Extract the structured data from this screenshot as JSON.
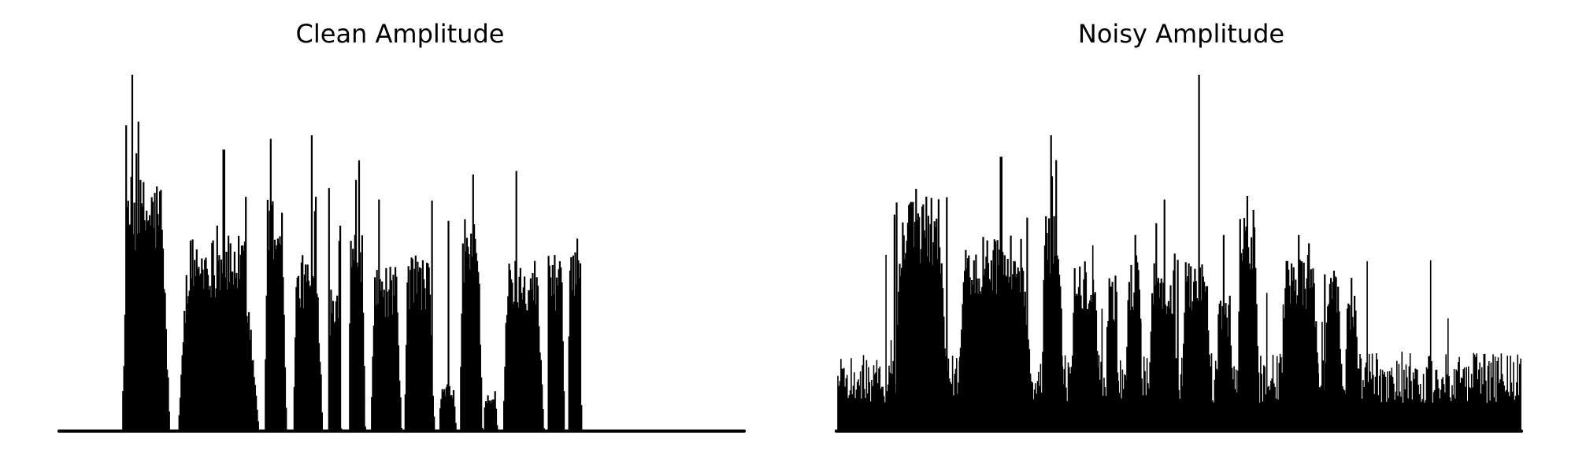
{
  "chart_data": [
    {
      "type": "area",
      "title": "Clean Amplitude",
      "xlabel": "",
      "ylabel": "",
      "axes_visible": false,
      "grid": false,
      "ylim": [
        0,
        1.0
      ],
      "color": "#000000",
      "bursts": [
        {
          "start": 0.092,
          "end": 0.162,
          "peak": 1.0,
          "level": 0.65
        },
        {
          "start": 0.174,
          "end": 0.292,
          "peak": 0.79,
          "level": 0.5
        },
        {
          "start": 0.3,
          "end": 0.332,
          "peak": 0.82,
          "level": 0.6
        },
        {
          "start": 0.342,
          "end": 0.385,
          "peak": 0.83,
          "level": 0.45
        },
        {
          "start": 0.394,
          "end": 0.412,
          "peak": 0.77,
          "level": 0.4
        },
        {
          "start": 0.423,
          "end": 0.447,
          "peak": 0.76,
          "level": 0.55
        },
        {
          "start": 0.455,
          "end": 0.5,
          "peak": 0.65,
          "level": 0.42
        },
        {
          "start": 0.504,
          "end": 0.548,
          "peak": 0.74,
          "level": 0.45
        },
        {
          "start": 0.555,
          "end": 0.58,
          "peak": 0.59,
          "level": 0.12
        },
        {
          "start": 0.585,
          "end": 0.618,
          "peak": 0.72,
          "level": 0.55
        },
        {
          "start": 0.62,
          "end": 0.64,
          "peak": 0.14,
          "level": 0.1
        },
        {
          "start": 0.648,
          "end": 0.708,
          "peak": 0.73,
          "level": 0.45
        },
        {
          "start": 0.713,
          "end": 0.738,
          "peak": 0.54,
          "level": 0.45
        },
        {
          "start": 0.743,
          "end": 0.763,
          "peak": 0.54,
          "level": 0.45
        }
      ]
    },
    {
      "type": "area",
      "title": "Noisy Amplitude",
      "xlabel": "",
      "ylabel": "",
      "axes_visible": false,
      "grid": false,
      "ylim": [
        0,
        1.0
      ],
      "color": "#000000",
      "noise_floor": 0.22,
      "bursts": [
        {
          "start": 0.085,
          "end": 0.165,
          "peak": 0.68,
          "level": 0.6
        },
        {
          "start": 0.174,
          "end": 0.292,
          "peak": 0.77,
          "level": 0.5
        },
        {
          "start": 0.3,
          "end": 0.332,
          "peak": 0.83,
          "level": 0.58
        },
        {
          "start": 0.342,
          "end": 0.385,
          "peak": 0.72,
          "level": 0.45
        },
        {
          "start": 0.394,
          "end": 0.412,
          "peak": 0.62,
          "level": 0.4
        },
        {
          "start": 0.423,
          "end": 0.447,
          "peak": 0.55,
          "level": 0.45
        },
        {
          "start": 0.455,
          "end": 0.5,
          "peak": 0.65,
          "level": 0.42
        },
        {
          "start": 0.504,
          "end": 0.548,
          "peak": 1.0,
          "level": 0.45
        },
        {
          "start": 0.555,
          "end": 0.58,
          "peak": 0.55,
          "level": 0.35
        },
        {
          "start": 0.585,
          "end": 0.618,
          "peak": 0.66,
          "level": 0.55
        },
        {
          "start": 0.648,
          "end": 0.708,
          "peak": 0.55,
          "level": 0.45
        },
        {
          "start": 0.713,
          "end": 0.738,
          "peak": 0.45,
          "level": 0.4
        },
        {
          "start": 0.743,
          "end": 0.763,
          "peak": 0.43,
          "level": 0.35
        }
      ]
    }
  ]
}
